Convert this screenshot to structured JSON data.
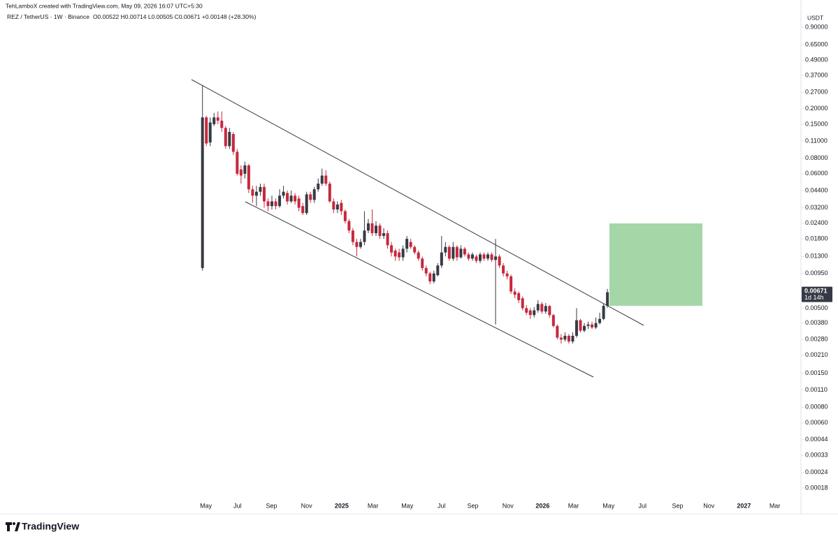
{
  "header": {
    "credit": "TehLamboX created with TradingView.com, May 09, 2026 16:07 UTC+5:30"
  },
  "footer": {
    "brand": "TradingView"
  },
  "chart_data": {
    "type": "candlestick",
    "title": "REZ / TetherUS · 1W · Binance",
    "subtitle": "O0.00522 H0.00714 L0.00505 C0.00671 +0.00148 (+28.30%)",
    "y_label": "USDT",
    "price_tag": "0.00671",
    "countdown": "1d 14h",
    "log_scale": true,
    "up_color": "#363a45",
    "down_color": "#c6283d",
    "ylim": [
      0.000113,
      1.49
    ],
    "xlim": [
      -52.5,
      155
    ],
    "yticks": [
      {
        "value": 0.9,
        "label": "0.90000"
      },
      {
        "value": 0.65,
        "label": "0.65000"
      },
      {
        "value": 0.49,
        "label": "0.49000"
      },
      {
        "value": 0.37,
        "label": "0.37000"
      },
      {
        "value": 0.27,
        "label": "0.27000"
      },
      {
        "value": 0.2,
        "label": "0.20000"
      },
      {
        "value": 0.15,
        "label": "0.15000"
      },
      {
        "value": 0.11,
        "label": "0.11000"
      },
      {
        "value": 0.08,
        "label": "0.08000"
      },
      {
        "value": 0.06,
        "label": "0.06000"
      },
      {
        "value": 0.044,
        "label": "0.04400"
      },
      {
        "value": 0.032,
        "label": "0.03200"
      },
      {
        "value": 0.024,
        "label": "0.02400"
      },
      {
        "value": 0.018,
        "label": "0.01800"
      },
      {
        "value": 0.013,
        "label": "0.01300"
      },
      {
        "value": 0.0095,
        "label": "0.00950"
      },
      {
        "value": 0.005,
        "label": "0.00500"
      },
      {
        "value": 0.0038,
        "label": "0.00380"
      },
      {
        "value": 0.0028,
        "label": "0.00280"
      },
      {
        "value": 0.0021,
        "label": "0.00210"
      },
      {
        "value": 0.0015,
        "label": "0.00150"
      },
      {
        "value": 0.0011,
        "label": "0.00110"
      },
      {
        "value": 0.0008,
        "label": "0.00080"
      },
      {
        "value": 0.0006,
        "label": "0.00060"
      },
      {
        "value": 0.00044,
        "label": "0.00044"
      },
      {
        "value": 0.00033,
        "label": "0.00033"
      },
      {
        "value": 0.00024,
        "label": "0.00024"
      },
      {
        "value": 0.00018,
        "label": "0.00018"
      }
    ],
    "xticks": [
      {
        "value": 0.9,
        "label": "May"
      },
      {
        "value": 9.1,
        "label": "Jul"
      },
      {
        "value": 17.9,
        "label": "Sep"
      },
      {
        "value": 27.0,
        "label": "Nov"
      },
      {
        "value": 36.1,
        "label": "2025"
      },
      {
        "value": 44.2,
        "label": "Mar"
      },
      {
        "value": 53.1,
        "label": "May"
      },
      {
        "value": 62.0,
        "label": "Jul"
      },
      {
        "value": 70.1,
        "label": "Sep"
      },
      {
        "value": 79.2,
        "label": "Nov"
      },
      {
        "value": 88.2,
        "label": "2026"
      },
      {
        "value": 96.2,
        "label": "Mar"
      },
      {
        "value": 105.3,
        "label": "May"
      },
      {
        "value": 114.1,
        "label": "Jul"
      },
      {
        "value": 123.2,
        "label": "Sep"
      },
      {
        "value": 131.3,
        "label": "Nov"
      },
      {
        "value": 140.4,
        "label": "2027"
      },
      {
        "value": 148.4,
        "label": "Mar"
      }
    ],
    "open": [
      0.0105,
      0.17,
      0.107,
      0.15,
      0.17,
      0.16,
      0.14,
      0.1,
      0.125,
      0.09,
      0.065,
      0.06,
      0.07,
      0.045,
      0.04,
      0.043,
      0.047,
      0.036,
      0.033,
      0.036,
      0.033,
      0.04,
      0.042,
      0.036,
      0.04,
      0.038,
      0.033,
      0.029,
      0.041,
      0.037,
      0.045,
      0.05,
      0.058,
      0.05,
      0.036,
      0.031,
      0.035,
      0.03,
      0.025,
      0.021,
      0.017,
      0.0155,
      0.017,
      0.021,
      0.024,
      0.02,
      0.023,
      0.019,
      0.02,
      0.016,
      0.0145,
      0.014,
      0.0128,
      0.015,
      0.017,
      0.0155,
      0.014,
      0.0125,
      0.0105,
      0.0095,
      0.0082,
      0.0092,
      0.011,
      0.014,
      0.0155,
      0.0125,
      0.0155,
      0.0128,
      0.015,
      0.0135,
      0.0125,
      0.013,
      0.012,
      0.0135,
      0.0125,
      0.0135,
      0.0122,
      0.013,
      0.011,
      0.0095,
      0.009,
      0.0068,
      0.0066,
      0.006,
      0.005,
      0.0048,
      0.0044,
      0.0048,
      0.0054,
      0.0047,
      0.0052,
      0.0044,
      0.0036,
      0.0029,
      0.0028,
      0.003,
      0.0027,
      0.003,
      0.004,
      0.0033,
      0.0036,
      0.0037,
      0.0035,
      0.0038,
      0.0041,
      0.00522
    ],
    "high": [
      0.31,
      0.175,
      0.17,
      0.185,
      0.19,
      0.19,
      0.145,
      0.14,
      0.13,
      0.095,
      0.07,
      0.075,
      0.072,
      0.048,
      0.048,
      0.05,
      0.05,
      0.038,
      0.04,
      0.038,
      0.045,
      0.048,
      0.044,
      0.044,
      0.042,
      0.04,
      0.035,
      0.043,
      0.043,
      0.047,
      0.055,
      0.066,
      0.064,
      0.052,
      0.038,
      0.036,
      0.037,
      0.031,
      0.026,
      0.022,
      0.018,
      0.018,
      0.03,
      0.026,
      0.031,
      0.025,
      0.024,
      0.022,
      0.021,
      0.017,
      0.015,
      0.015,
      0.016,
      0.019,
      0.018,
      0.016,
      0.0145,
      0.013,
      0.011,
      0.0098,
      0.01,
      0.0115,
      0.019,
      0.017,
      0.016,
      0.017,
      0.016,
      0.016,
      0.0155,
      0.014,
      0.014,
      0.0135,
      0.014,
      0.014,
      0.014,
      0.014,
      0.018,
      0.0135,
      0.0115,
      0.01,
      0.0093,
      0.0072,
      0.0068,
      0.0062,
      0.0053,
      0.005,
      0.0051,
      0.0058,
      0.0056,
      0.0055,
      0.0053,
      0.0045,
      0.0037,
      0.0031,
      0.0032,
      0.0031,
      0.0032,
      0.005,
      0.0041,
      0.0038,
      0.0039,
      0.0039,
      0.0042,
      0.0046,
      0.0054,
      0.00714
    ],
    "low": [
      0.01,
      0.1,
      0.1,
      0.145,
      0.15,
      0.13,
      0.095,
      0.095,
      0.085,
      0.058,
      0.05,
      0.055,
      0.042,
      0.035,
      0.033,
      0.04,
      0.032,
      0.03,
      0.031,
      0.031,
      0.032,
      0.038,
      0.034,
      0.035,
      0.034,
      0.03,
      0.028,
      0.028,
      0.035,
      0.035,
      0.043,
      0.048,
      0.048,
      0.035,
      0.029,
      0.029,
      0.028,
      0.024,
      0.02,
      0.016,
      0.013,
      0.015,
      0.016,
      0.02,
      0.019,
      0.019,
      0.018,
      0.018,
      0.015,
      0.013,
      0.012,
      0.012,
      0.012,
      0.014,
      0.015,
      0.0135,
      0.012,
      0.01,
      0.009,
      0.0078,
      0.0079,
      0.009,
      0.0105,
      0.013,
      0.012,
      0.012,
      0.012,
      0.0125,
      0.013,
      0.012,
      0.012,
      0.0115,
      0.0115,
      0.012,
      0.012,
      0.0118,
      0.0037,
      0.0105,
      0.009,
      0.0085,
      0.0065,
      0.006,
      0.0055,
      0.0048,
      0.0044,
      0.0041,
      0.0042,
      0.0046,
      0.0045,
      0.0045,
      0.0042,
      0.0035,
      0.0028,
      0.0026,
      0.0027,
      0.0026,
      0.0026,
      0.0029,
      0.0032,
      0.0032,
      0.0034,
      0.0034,
      0.0034,
      0.0037,
      0.004,
      0.00505
    ],
    "close": [
      0.17,
      0.105,
      0.155,
      0.17,
      0.16,
      0.14,
      0.1,
      0.13,
      0.09,
      0.06,
      0.058,
      0.07,
      0.045,
      0.04,
      0.043,
      0.047,
      0.036,
      0.033,
      0.036,
      0.033,
      0.04,
      0.043,
      0.036,
      0.04,
      0.036,
      0.032,
      0.029,
      0.041,
      0.037,
      0.045,
      0.05,
      0.058,
      0.05,
      0.036,
      0.031,
      0.034,
      0.03,
      0.025,
      0.021,
      0.017,
      0.0155,
      0.017,
      0.021,
      0.024,
      0.02,
      0.023,
      0.019,
      0.02,
      0.016,
      0.014,
      0.013,
      0.0128,
      0.015,
      0.018,
      0.0155,
      0.014,
      0.0125,
      0.0105,
      0.0095,
      0.0082,
      0.0095,
      0.011,
      0.014,
      0.0155,
      0.0125,
      0.0155,
      0.0128,
      0.015,
      0.0135,
      0.0125,
      0.0135,
      0.012,
      0.0135,
      0.0125,
      0.0135,
      0.0122,
      0.013,
      0.011,
      0.0095,
      0.009,
      0.0068,
      0.0064,
      0.0058,
      0.005,
      0.0046,
      0.0044,
      0.0048,
      0.0054,
      0.0047,
      0.0052,
      0.0044,
      0.0036,
      0.0029,
      0.0028,
      0.003,
      0.0027,
      0.003,
      0.004,
      0.0033,
      0.0036,
      0.0037,
      0.0035,
      0.0038,
      0.0041,
      0.00522,
      0.00671
    ]
  }
}
